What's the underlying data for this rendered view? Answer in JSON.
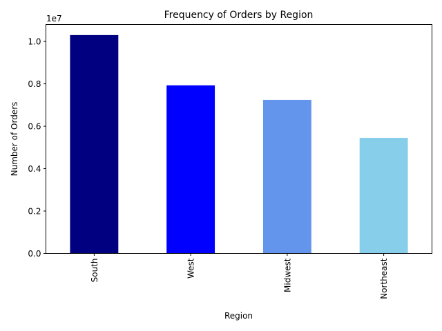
{
  "chart_data": {
    "type": "bar",
    "title": "Frequency of Orders by Region",
    "xlabel": "Region",
    "ylabel": "Number of Orders",
    "y_offset_label": "1e7",
    "y_scale": 10000000,
    "categories": [
      "South",
      "West",
      "Midwest",
      "Northeast"
    ],
    "values": [
      10300000,
      7930000,
      7240000,
      5450000
    ],
    "colors": [
      "#000080",
      "#0000ff",
      "#6495ed",
      "#87ceeb"
    ],
    "ylim": [
      0,
      10800000
    ],
    "yticks": [
      0,
      2000000,
      4000000,
      6000000,
      8000000,
      10000000
    ],
    "ytick_labels": [
      "0.0",
      "0.2",
      "0.4",
      "0.6",
      "0.8",
      "1.0"
    ],
    "grid": false,
    "legend": "none"
  }
}
